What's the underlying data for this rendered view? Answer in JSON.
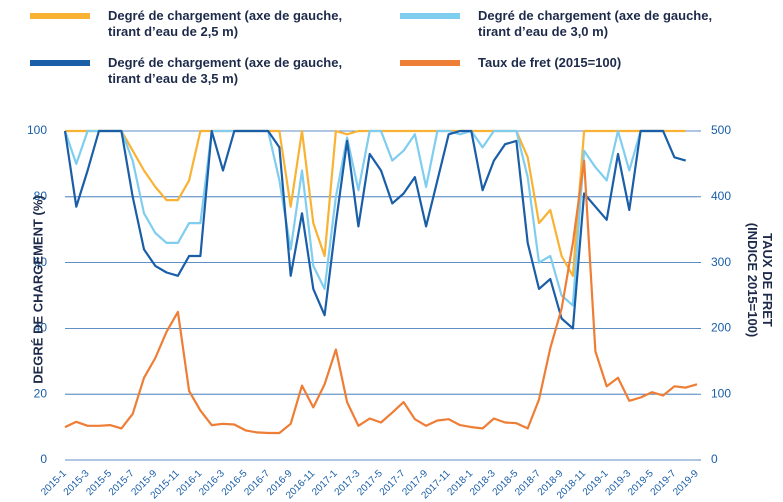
{
  "chart_data": {
    "type": "line",
    "categories": [
      "2015-1",
      null,
      "2015-3",
      null,
      "2015-5",
      null,
      "2015-7",
      null,
      "2015-9",
      null,
      "2015-11",
      null,
      "2016-1",
      null,
      "2016-3",
      null,
      "2016-5",
      null,
      "2016-7",
      null,
      "2016-9",
      null,
      "2016-11",
      null,
      "2017-1",
      null,
      "2017-3",
      null,
      "2017-5",
      null,
      "2017-7",
      null,
      "2017-9",
      null,
      "2017-11",
      null,
      "2018-1",
      null,
      "2018-3",
      null,
      "2018-5",
      null,
      "2018-7",
      null,
      "2018-9",
      null,
      "2018-11",
      null,
      "2019-1",
      null,
      "2019-3",
      null,
      "2019-5",
      null,
      "2019-7",
      null,
      "2019-9"
    ],
    "series": [
      {
        "name": "Degré de chargement (axe de gauche, tirant d’eau de 2,5 m)",
        "color": "#f9b233",
        "values": [
          100,
          100,
          100,
          100,
          100,
          100,
          94,
          88,
          83,
          79,
          79,
          85,
          100,
          100,
          100,
          100,
          100,
          100,
          100,
          100,
          77,
          100,
          72,
          62,
          100,
          99,
          100,
          100,
          100,
          100,
          100,
          100,
          100,
          100,
          100,
          100,
          100,
          100,
          100,
          100,
          100,
          92,
          72,
          76,
          62,
          56,
          100,
          100,
          100,
          100,
          100,
          100,
          100,
          100,
          100,
          100,
          null
        ]
      },
      {
        "name": "Degré de chargement (axe de gauche, tirant d’eau de 3,0 m)",
        "color": "#7fcdef",
        "values": [
          100,
          90,
          100,
          100,
          100,
          100,
          91,
          75,
          69,
          66,
          66,
          72,
          72,
          100,
          100,
          100,
          100,
          100,
          100,
          85,
          64,
          88,
          59,
          52,
          80,
          98,
          82,
          100,
          100,
          91,
          94,
          99,
          83,
          100,
          100,
          99,
          100,
          95,
          100,
          100,
          100,
          86,
          60,
          62,
          50,
          47,
          94,
          89,
          85,
          100,
          88,
          100,
          100,
          100,
          null,
          null,
          null
        ]
      },
      {
        "name": "Degré de chargement (axe de gauche, tirant d’eau de 3,5 m)",
        "color": "#1a5ea8",
        "values": [
          100,
          77,
          88,
          100,
          100,
          100,
          80,
          64,
          59,
          57,
          56,
          62,
          62,
          100,
          88,
          100,
          100,
          100,
          100,
          95,
          56,
          75,
          52,
          44,
          72,
          97,
          71,
          93,
          88,
          78,
          81,
          86,
          71,
          85,
          99,
          100,
          100,
          82,
          91,
          96,
          97,
          66,
          52,
          55,
          43,
          40,
          81,
          77,
          73,
          93,
          76,
          100,
          100,
          100,
          92,
          91,
          null
        ]
      },
      {
        "name": "Taux de fret (2015=100)",
        "color": "#ee7d35",
        "axis": "y2",
        "values": [
          50,
          58,
          52,
          52,
          53,
          48,
          70,
          125,
          155,
          195,
          225,
          105,
          75,
          53,
          55,
          54,
          45,
          42,
          41,
          41,
          55,
          113,
          80,
          115,
          168,
          88,
          52,
          63,
          57,
          72,
          88,
          62,
          52,
          60,
          62,
          53,
          50,
          48,
          63,
          57,
          56,
          48,
          92,
          170,
          230,
          330,
          455,
          165,
          112,
          125,
          90,
          95,
          103,
          98,
          112,
          110,
          115
        ]
      }
    ],
    "ylabel": "DEGRÉ DE CHARGEMENT (%)",
    "y2label": "TAUX DE FRET (INDICE 2015=100)",
    "ylim": [
      0,
      100
    ],
    "yticks": [
      0,
      20,
      40,
      60,
      80,
      100
    ],
    "y2lim": [
      0,
      500
    ],
    "y2ticks": [
      0,
      100,
      200,
      300,
      400,
      500
    ],
    "grid": true
  }
}
